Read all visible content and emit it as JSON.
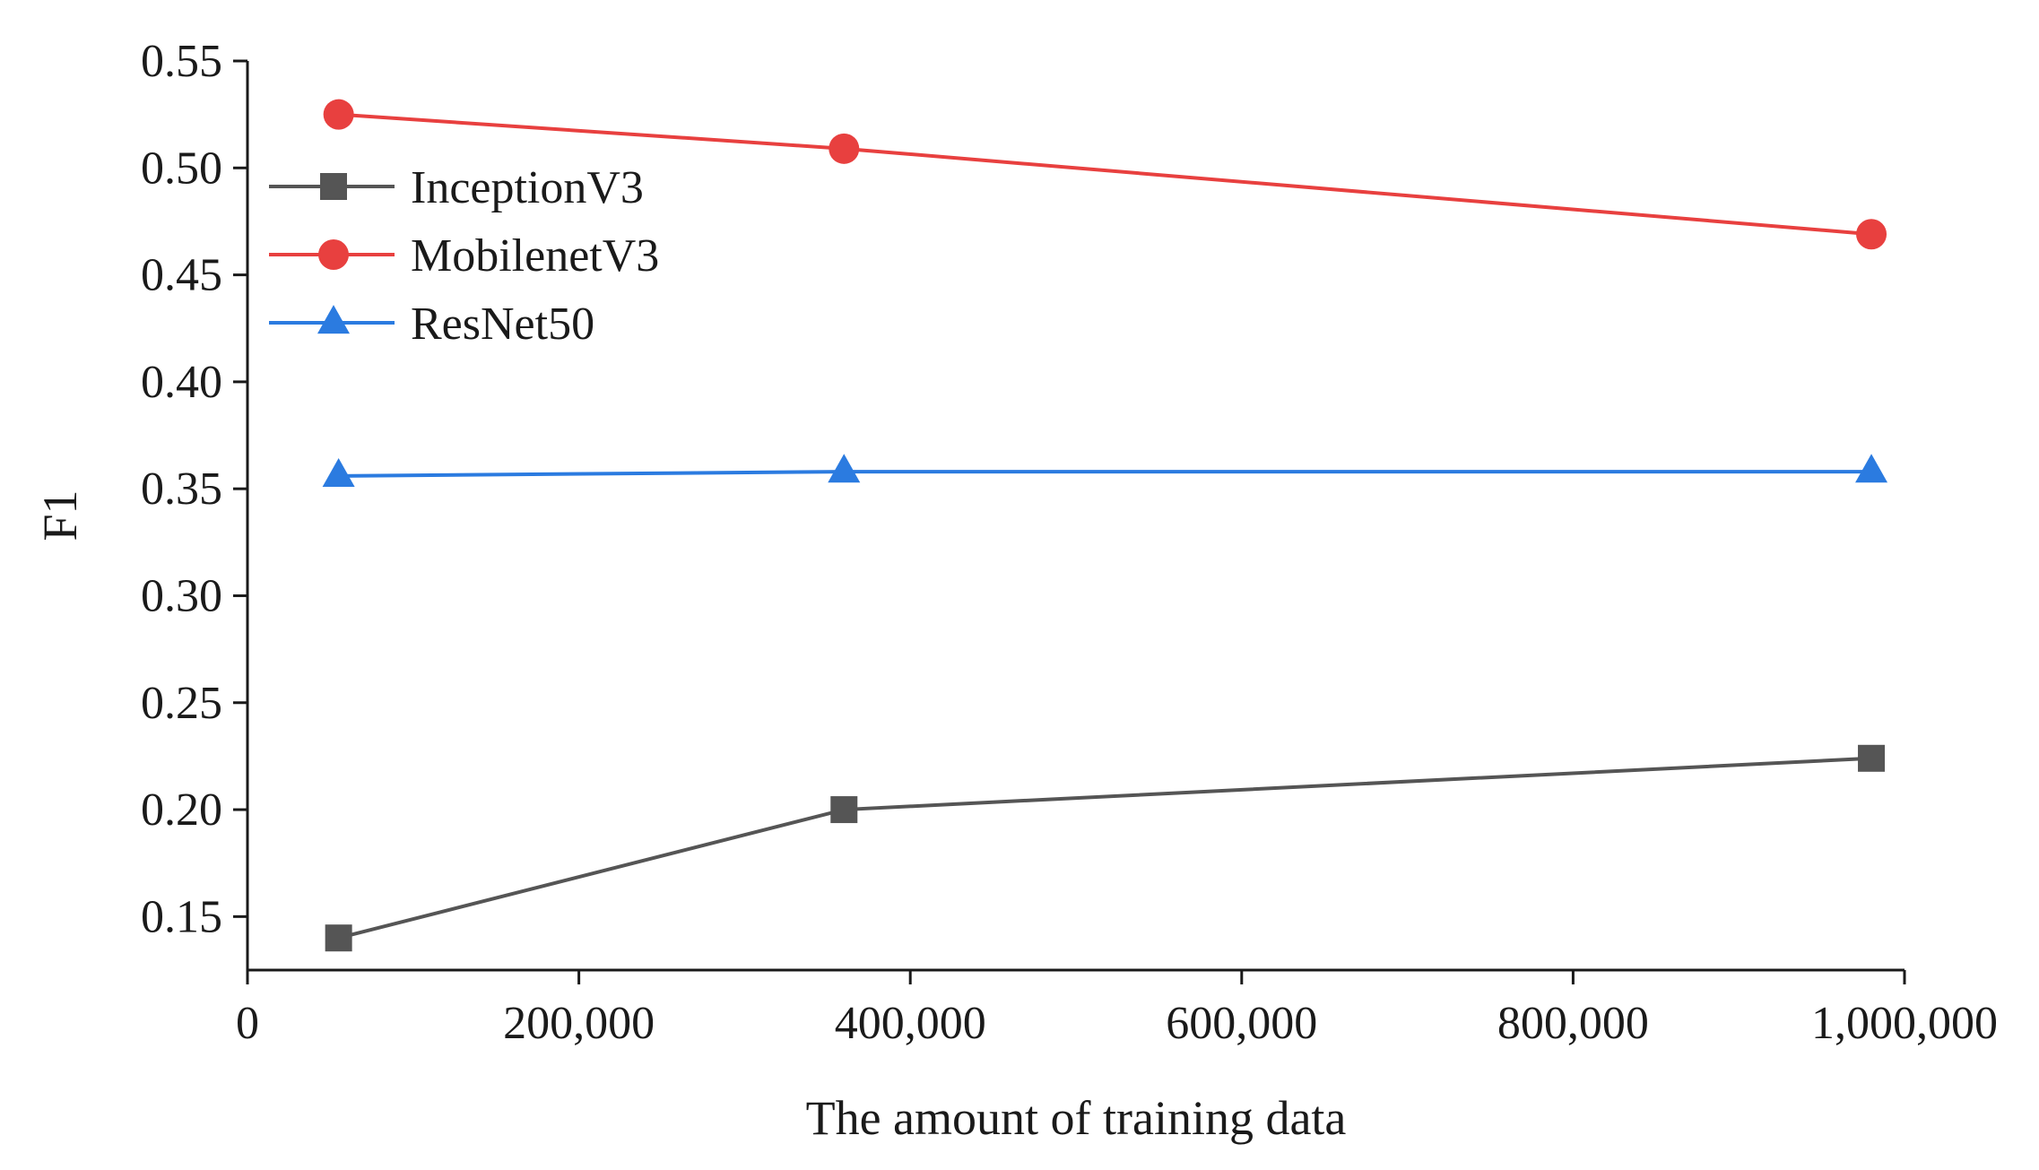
{
  "chart_data": {
    "type": "line",
    "title": "",
    "xlabel": "The amount of training data",
    "ylabel": "F1",
    "xlim": [
      0,
      1000000
    ],
    "ylim": [
      0.125,
      0.55
    ],
    "x_ticks": [
      0,
      200000,
      400000,
      600000,
      800000,
      1000000
    ],
    "x_tick_labels": [
      "0",
      "200,000",
      "400,000",
      "600,000",
      "800,000",
      "1,000,000"
    ],
    "y_ticks": [
      0.15,
      0.2,
      0.25,
      0.3,
      0.35,
      0.4,
      0.45,
      0.5,
      0.55
    ],
    "y_tick_labels": [
      "0.15",
      "0.20",
      "0.25",
      "0.30",
      "0.35",
      "0.40",
      "0.45",
      "0.50",
      "0.55"
    ],
    "grid": false,
    "legend_position": "upper-left",
    "x": [
      55000,
      360000,
      980000
    ],
    "series": [
      {
        "name": "InceptionV3",
        "values": [
          0.14,
          0.2,
          0.224
        ],
        "color": "#555555",
        "marker": "square"
      },
      {
        "name": "MobilenetV3",
        "values": [
          0.525,
          0.509,
          0.469
        ],
        "color": "#e8403f",
        "marker": "circle"
      },
      {
        "name": "ResNet50",
        "values": [
          0.356,
          0.358,
          0.358
        ],
        "color": "#2b7be0",
        "marker": "triangle"
      }
    ]
  }
}
